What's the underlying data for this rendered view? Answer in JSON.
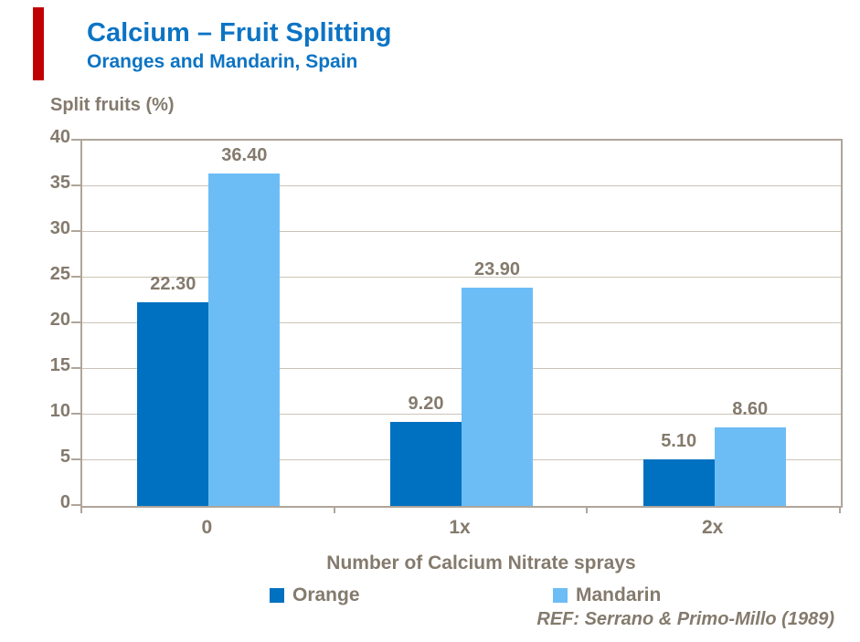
{
  "colors": {
    "accent_red": "#C00000",
    "title_blue": "#0D74C4",
    "text_brown": "#847A6D",
    "plot_border": "#AFA59A",
    "gridline": "#CDC3B7",
    "orange_series": "#0070C0",
    "mandarin_series": "#6CBDF6"
  },
  "header": {
    "title": "Calcium – Fruit Splitting",
    "subtitle": "Oranges and Mandarin, Spain"
  },
  "chart_data": {
    "type": "bar",
    "title": "Calcium – Fruit Splitting",
    "subtitle": "Oranges and Mandarin, Spain",
    "ylabel": "Split fruits (%)",
    "xlabel": "Number of Calcium Nitrate sprays",
    "categories": [
      "0",
      "1x",
      "2x"
    ],
    "series": [
      {
        "name": "Orange",
        "color_key": "orange_series",
        "values": [
          22.3,
          9.2,
          5.1
        ],
        "value_labels": [
          "22.30",
          "9.20",
          "5.10"
        ]
      },
      {
        "name": "Mandarin",
        "color_key": "mandarin_series",
        "values": [
          36.4,
          23.9,
          8.6
        ],
        "value_labels": [
          "36.40",
          "23.90",
          "8.60"
        ]
      }
    ],
    "ylim": [
      0,
      40
    ],
    "yticks": [
      0,
      5,
      10,
      15,
      20,
      25,
      30,
      35,
      40
    ],
    "grid": true,
    "legend_position": "bottom"
  },
  "footer": {
    "reference": "REF: Serrano & Primo-Millo (1989)"
  }
}
